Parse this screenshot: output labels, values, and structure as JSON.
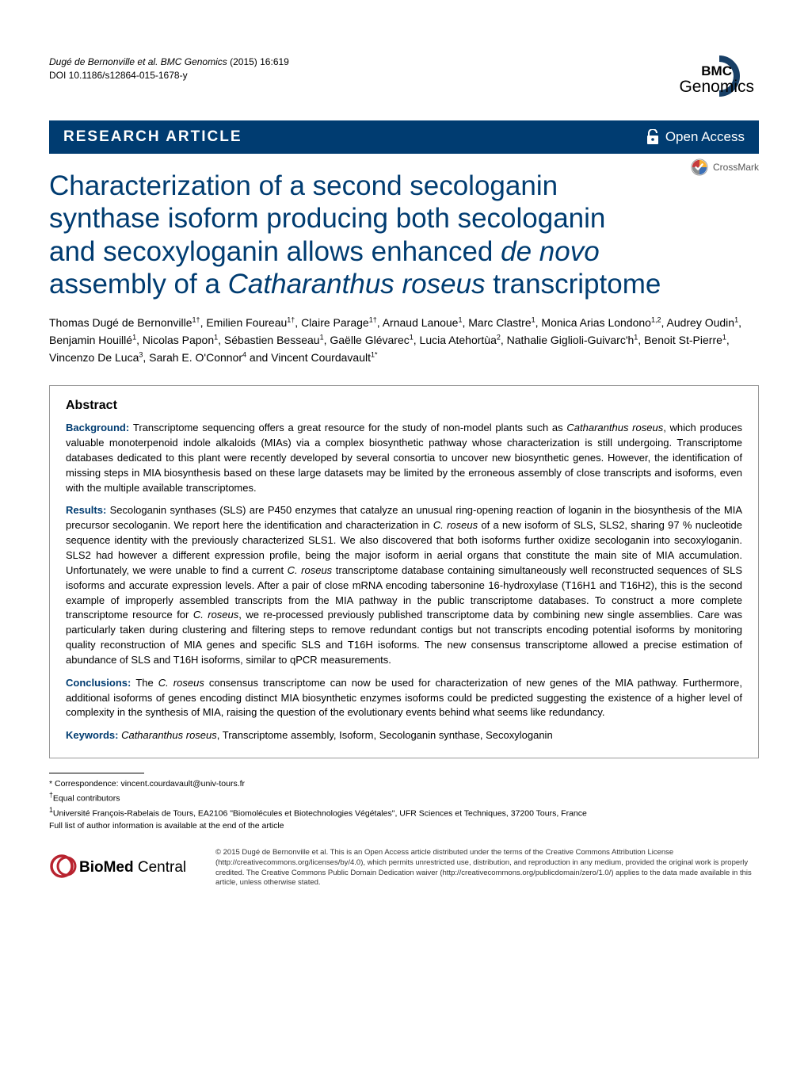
{
  "header": {
    "citation_authors": "Dugé de Bernonville et al. BMC Genomics",
    "citation_year_vol": " (2015) 16:619",
    "doi": "DOI 10.1186/s12864-015-1678-y",
    "journal_logo_top": "BMC",
    "journal_logo_bottom": "Genomics"
  },
  "article_bar": {
    "type": "RESEARCH ARTICLE",
    "access": "Open Access"
  },
  "crossmark": "CrossMark",
  "title": {
    "line1": "Characterization of a second secologanin",
    "line2": "synthase isoform producing both secologanin",
    "line3": "and secoxyloganin allows enhanced ",
    "line3_ital": "de novo",
    "line4": "assembly of a ",
    "line4_ital": "Catharanthus roseus",
    "line4_end": " transcriptome"
  },
  "authors": "Thomas Dugé de Bernonville<sup>1†</sup>, Emilien Foureau<sup>1†</sup>, Claire Parage<sup>1†</sup>, Arnaud Lanoue<sup>1</sup>, Marc Clastre<sup>1</sup>, Monica Arias Londono<sup>1,2</sup>, Audrey Oudin<sup>1</sup>, Benjamin Houillé<sup>1</sup>, Nicolas Papon<sup>1</sup>, Sébastien Besseau<sup>1</sup>, Gaëlle Glévarec<sup>1</sup>, Lucia Atehortùa<sup>2</sup>, Nathalie Giglioli-Guivarc'h<sup>1</sup>, Benoit St-Pierre<sup>1</sup>, Vincenzo De Luca<sup>3</sup>, Sarah E. O'Connor<sup>4</sup> and Vincent Courdavault<sup>1*</sup>",
  "abstract": {
    "heading": "Abstract",
    "background_label": "Background: ",
    "background": "Transcriptome sequencing offers a great resource for the study of non-model plants such as <span class=\"ital\">Catharanthus roseus</span>, which produces valuable monoterpenoid indole alkaloids (MIAs) via a complex biosynthetic pathway whose characterization is still undergoing. Transcriptome databases dedicated to this plant were recently developed by several consortia to uncover new biosynthetic genes. However, the identification of missing steps in MIA biosynthesis based on these large datasets may be limited by the erroneous assembly of close transcripts and isoforms, even with the multiple available transcriptomes.",
    "results_label": "Results: ",
    "results": "Secologanin synthases (SLS) are P450 enzymes that catalyze an unusual ring-opening reaction of loganin in the biosynthesis of the MIA precursor secologanin. We report here the identification and characterization in <span class=\"ital\">C. roseus</span> of a new isoform of SLS, SLS2, sharing 97 % nucleotide sequence identity with the previously characterized SLS1. We also discovered that both isoforms further oxidize secologanin into secoxyloganin. SLS2 had however a different expression profile, being the major isoform in aerial organs that constitute the main site of MIA accumulation. Unfortunately, we were unable to find a current <span class=\"ital\">C. roseus</span> transcriptome database containing simultaneously well reconstructed sequences of SLS isoforms and accurate expression levels. After a pair of close mRNA encoding tabersonine 16-hydroxylase (T16H1 and T16H2), this is the second example of improperly assembled transcripts from the MIA pathway in the public transcriptome databases. To construct a more complete transcriptome resource for <span class=\"ital\">C. roseus</span>, we re-processed previously published transcriptome data by combining new single assemblies. Care was particularly taken during clustering and filtering steps to remove redundant contigs but not transcripts encoding potential isoforms by monitoring quality reconstruction of MIA genes and specific SLS and T16H isoforms. The new consensus transcriptome allowed a precise estimation of abundance of SLS and T16H isoforms, similar to qPCR measurements.",
    "conclusions_label": "Conclusions: ",
    "conclusions": "The <span class=\"ital\">C. roseus</span> consensus transcriptome can now be used for characterization of new genes of the MIA pathway. Furthermore, additional isoforms of genes encoding distinct MIA biosynthetic enzymes isoforms could be predicted suggesting the existence of a higher level of complexity in the synthesis of MIA, raising the question of the evolutionary events behind what seems like redundancy.",
    "keywords_label": "Keywords: ",
    "keywords": "<span class=\"ital\">Catharanthus roseus</span>, Transcriptome assembly, Isoform, Secologanin synthase, Secoxyloganin"
  },
  "footnotes": {
    "correspondence": "* Correspondence: vincent.courdavault@univ-tours.fr",
    "equal": "<sup>†</sup>Equal contributors",
    "affil1": "<sup>1</sup>Université François-Rabelais de Tours, EA2106 \"Biomolécules et Biotechnologies Végétales\", UFR Sciences et Techniques, 37200 Tours, France",
    "full_list": "Full list of author information is available at the end of the article"
  },
  "footer": {
    "logo_text": "BioMed Central",
    "copyright": "© 2015 Dugé de Bernonville et al. This is an Open Access article distributed under the terms of the Creative Commons Attribution License (http://creativecommons.org/licenses/by/4.0), which permits unrestricted use, distribution, and reproduction in any medium, provided the original work is properly credited. The Creative Commons Public Domain Dedication waiver (http://creativecommons.org/publicdomain/zero/1.0/) applies to the data made available in this article, unless otherwise stated."
  },
  "colors": {
    "brand_blue": "#003c71",
    "bmc_arc": "#183f66",
    "red": "#b8232f",
    "crossmark_yellow": "#f9b233",
    "crossmark_red": "#c63c3e",
    "crossmark_blue": "#3b6fb6",
    "crossmark_gray": "#8a8d8f"
  }
}
